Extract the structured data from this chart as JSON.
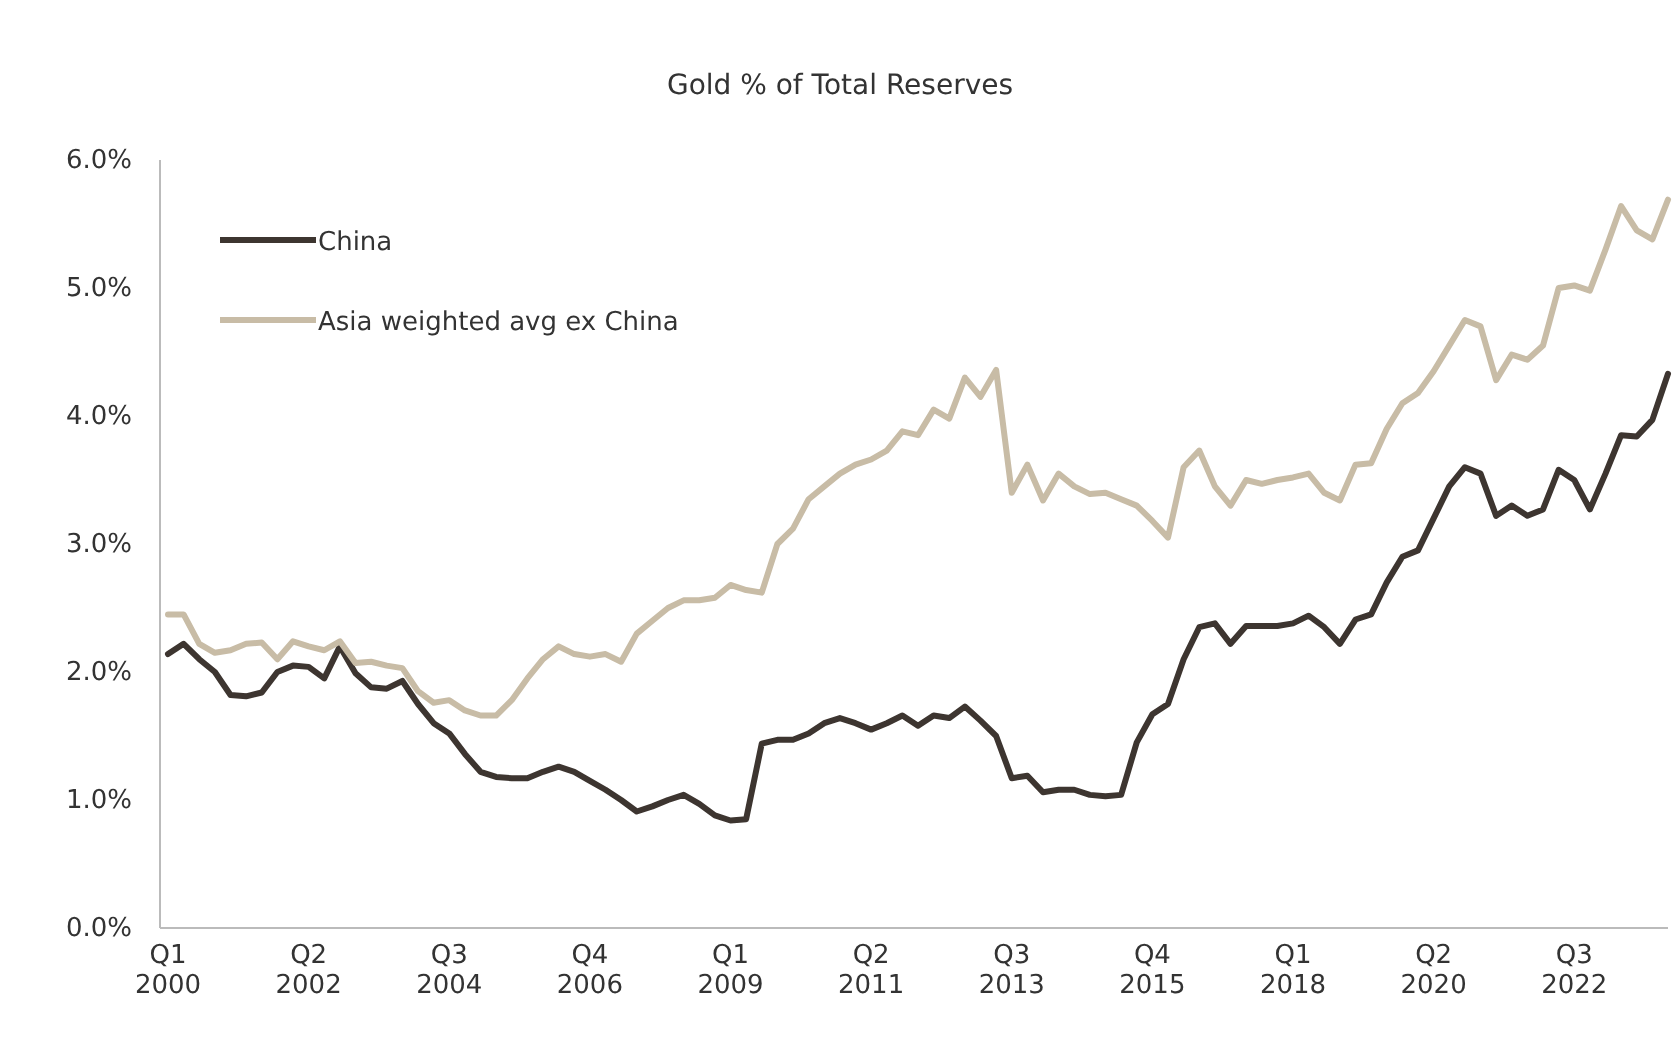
{
  "chart_data": {
    "type": "line",
    "title": "Gold % of Total Reserves",
    "categories": [
      "Q1 2000",
      null,
      null,
      null,
      null,
      null,
      null,
      null,
      null,
      "Q2 2002",
      null,
      null,
      null,
      null,
      null,
      null,
      null,
      null,
      "Q3 2004",
      null,
      null,
      null,
      null,
      null,
      null,
      null,
      null,
      "Q4 2006",
      null,
      null,
      null,
      null,
      null,
      null,
      null,
      null,
      "Q1 2009",
      null,
      null,
      null,
      null,
      null,
      null,
      null,
      null,
      "Q2 2011",
      null,
      null,
      null,
      null,
      null,
      null,
      null,
      null,
      "Q3 2013",
      null,
      null,
      null,
      null,
      null,
      null,
      null,
      null,
      "Q4 2015",
      null,
      null,
      null,
      null,
      null,
      null,
      null,
      null,
      "Q1 2018",
      null,
      null,
      null,
      null,
      null,
      null,
      null,
      null,
      "Q2 2020",
      null,
      null,
      null,
      null,
      null,
      null,
      null,
      null,
      "Q3 2022",
      null,
      null,
      null,
      null,
      null,
      null
    ],
    "series": [
      {
        "name": "China",
        "color": "#3d3530",
        "values": [
          2.14,
          2.22,
          2.1,
          2.0,
          1.82,
          1.81,
          1.84,
          2.0,
          2.05,
          2.04,
          1.95,
          2.2,
          1.99,
          1.88,
          1.87,
          1.93,
          1.75,
          1.6,
          1.52,
          1.36,
          1.22,
          1.18,
          1.17,
          1.17,
          1.22,
          1.26,
          1.22,
          1.15,
          1.08,
          1.0,
          0.91,
          0.95,
          1.0,
          1.04,
          0.97,
          0.88,
          0.84,
          0.85,
          1.44,
          1.47,
          1.47,
          1.52,
          1.6,
          1.64,
          1.6,
          1.55,
          1.6,
          1.66,
          1.58,
          1.66,
          1.64,
          1.73,
          1.62,
          1.5,
          1.17,
          1.19,
          1.06,
          1.08,
          1.08,
          1.04,
          1.03,
          1.04,
          1.45,
          1.67,
          1.75,
          2.1,
          2.35,
          2.38,
          2.22,
          2.36,
          2.36,
          2.36,
          2.38,
          2.44,
          2.35,
          2.22,
          2.41,
          2.45,
          2.7,
          2.9,
          2.95,
          3.2,
          3.45,
          3.6,
          3.55,
          3.22,
          3.3,
          3.22,
          3.27,
          3.58,
          3.5,
          3.27,
          3.55,
          3.85,
          3.84,
          3.97,
          4.33
        ]
      },
      {
        "name": "Asia weighted avg ex China",
        "color": "#c8bca6",
        "values": [
          2.45,
          2.45,
          2.22,
          2.15,
          2.17,
          2.22,
          2.23,
          2.1,
          2.24,
          2.2,
          2.17,
          2.24,
          2.07,
          2.08,
          2.05,
          2.03,
          1.85,
          1.76,
          1.78,
          1.7,
          1.66,
          1.66,
          1.78,
          1.95,
          2.1,
          2.2,
          2.14,
          2.12,
          2.14,
          2.08,
          2.3,
          2.4,
          2.5,
          2.56,
          2.56,
          2.58,
          2.68,
          2.64,
          2.62,
          3.0,
          3.12,
          3.35,
          3.45,
          3.55,
          3.62,
          3.66,
          3.73,
          3.88,
          3.85,
          4.05,
          3.98,
          4.3,
          4.15,
          4.36,
          3.4,
          3.62,
          3.34,
          3.55,
          3.45,
          3.39,
          3.4,
          3.35,
          3.3,
          3.18,
          3.05,
          3.6,
          3.73,
          3.45,
          3.3,
          3.5,
          3.47,
          3.5,
          3.52,
          3.55,
          3.4,
          3.34,
          3.62,
          3.63,
          3.9,
          4.1,
          4.18,
          4.35,
          4.55,
          4.75,
          4.7,
          4.28,
          4.48,
          4.44,
          4.55,
          5.0,
          5.02,
          4.98,
          5.3,
          5.64,
          5.45,
          5.38,
          5.69
        ]
      }
    ],
    "ylim": [
      0,
      6
    ],
    "yticks": [
      {
        "value": 0,
        "label": "0.0%"
      },
      {
        "value": 1,
        "label": "1.0%"
      },
      {
        "value": 2,
        "label": "2.0%"
      },
      {
        "value": 3,
        "label": "3.0%"
      },
      {
        "value": 4,
        "label": "4.0%"
      },
      {
        "value": 5,
        "label": "5.0%"
      },
      {
        "value": 6,
        "label": "6.0%"
      }
    ],
    "grid": false,
    "legend": "top left",
    "line_style": "solid",
    "marker": "none"
  }
}
